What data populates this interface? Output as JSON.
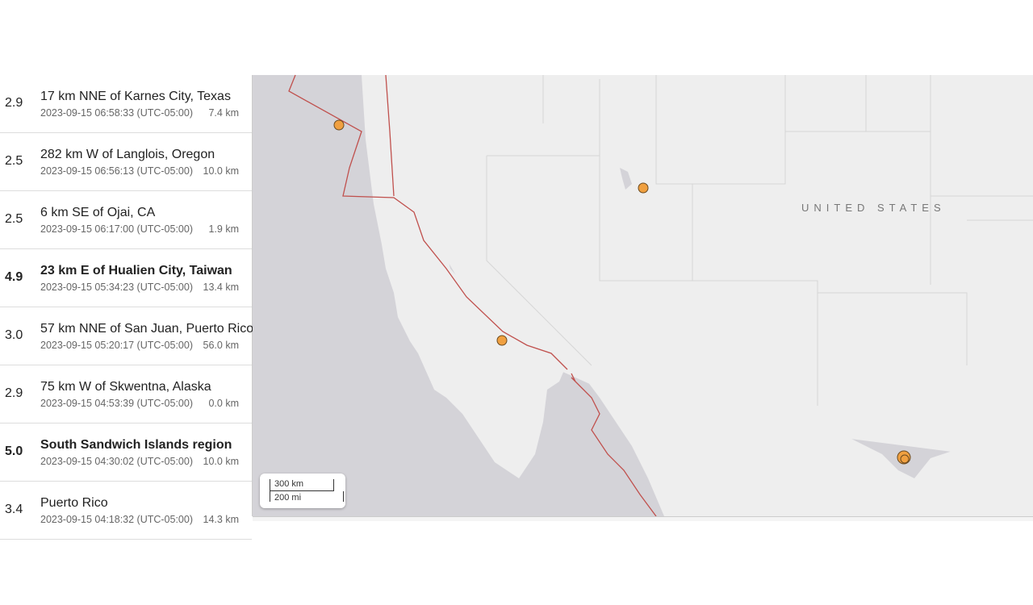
{
  "events": [
    {
      "mag": "2.9",
      "place": "17 km NNE of Karnes City, Texas",
      "time": "2023-09-15 06:58:33 (UTC-05:00)",
      "depth": "7.4 km",
      "significant": false
    },
    {
      "mag": "2.5",
      "place": "282 km W of Langlois, Oregon",
      "time": "2023-09-15 06:56:13 (UTC-05:00)",
      "depth": "10.0 km",
      "significant": false
    },
    {
      "mag": "2.5",
      "place": "6 km SE of Ojai, CA",
      "time": "2023-09-15 06:17:00 (UTC-05:00)",
      "depth": "1.9 km",
      "significant": false
    },
    {
      "mag": "4.9",
      "place": "23 km E of Hualien City, Taiwan",
      "time": "2023-09-15 05:34:23 (UTC-05:00)",
      "depth": "13.4 km",
      "significant": true
    },
    {
      "mag": "3.0",
      "place": "57 km NNE of San Juan, Puerto Rico",
      "time": "2023-09-15 05:20:17 (UTC-05:00)",
      "depth": "56.0 km",
      "significant": false
    },
    {
      "mag": "2.9",
      "place": "75 km W of Skwentna, Alaska",
      "time": "2023-09-15 04:53:39 (UTC-05:00)",
      "depth": "0.0 km",
      "significant": false
    },
    {
      "mag": "5.0",
      "place": "South Sandwich Islands region",
      "time": "2023-09-15 04:30:02 (UTC-05:00)",
      "depth": "10.0 km",
      "significant": true
    },
    {
      "mag": "3.4",
      "place": "Puerto Rico",
      "time": "2023-09-15 04:18:32 (UTC-05:00)",
      "depth": "14.3 km",
      "significant": false
    }
  ],
  "map": {
    "country_label": "UNITED STATES",
    "scale_km": "300 km",
    "scale_mi": "200 mi",
    "marker_color": "#f0a040",
    "fault_color": "#c0504d",
    "ocean_color": "#d4d3d8",
    "land_color": "#eeeeee"
  }
}
